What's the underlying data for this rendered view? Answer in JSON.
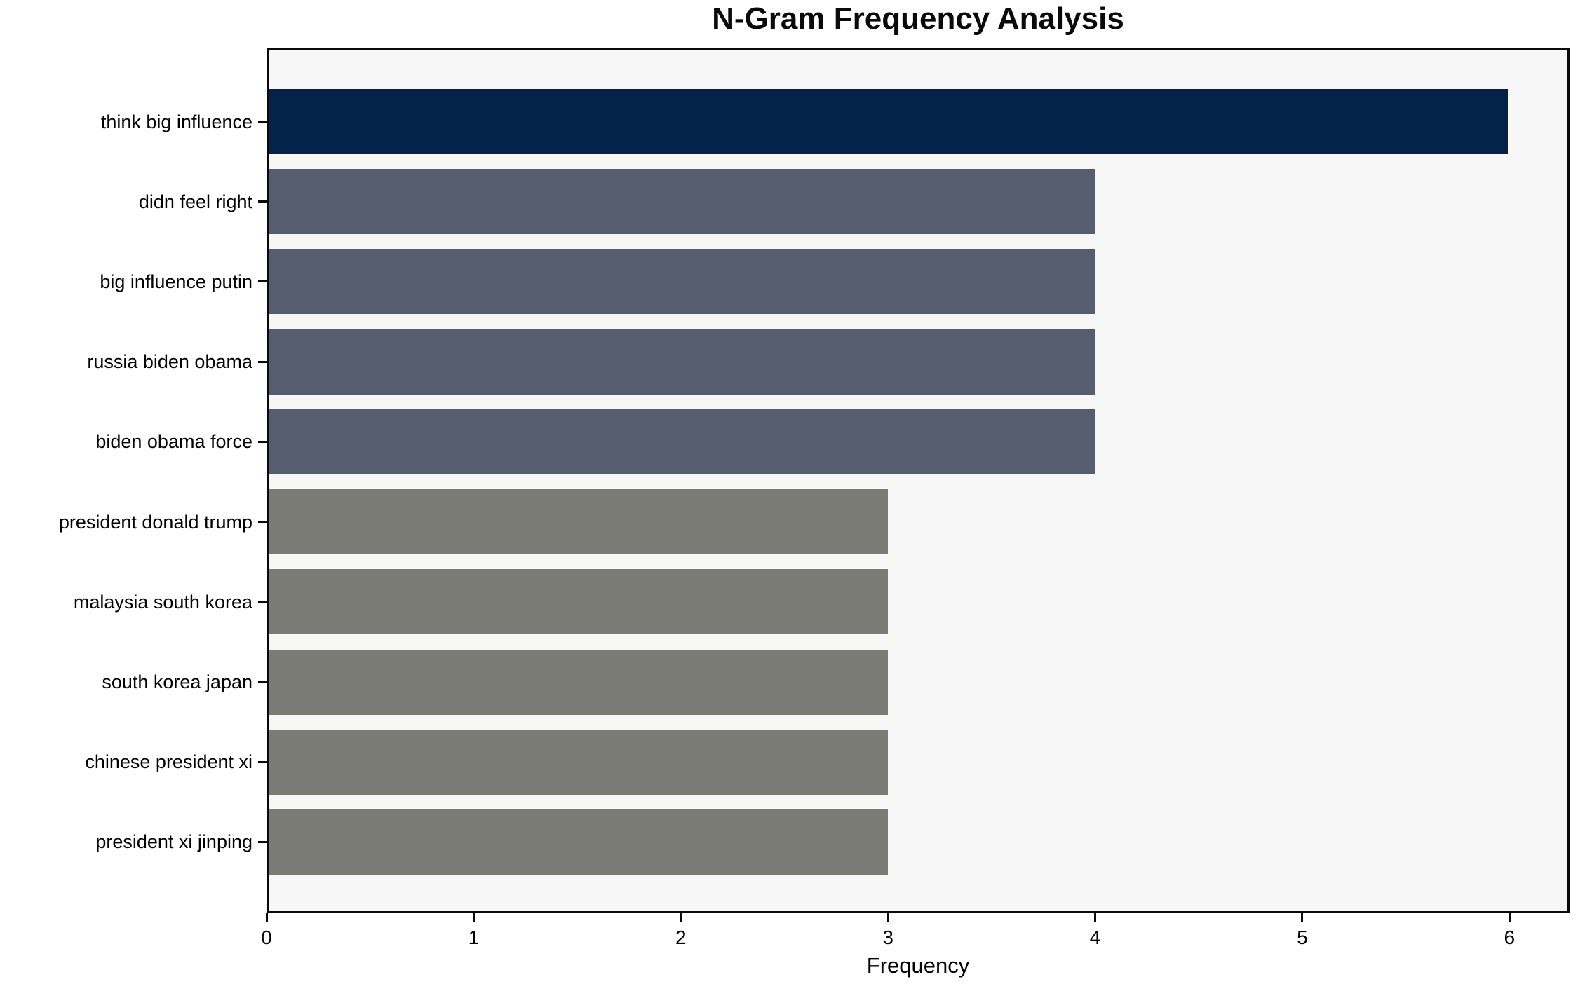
{
  "chart_data": {
    "type": "bar",
    "orientation": "horizontal",
    "title": "N-Gram Frequency Analysis",
    "xlabel": "Frequency",
    "ylabel": "",
    "categories": [
      "think big influence",
      "didn feel right",
      "big influence putin",
      "russia biden obama",
      "biden obama force",
      "president donald trump",
      "malaysia south korea",
      "south korea japan",
      "chinese president xi",
      "president xi jinping"
    ],
    "values": [
      6,
      4,
      4,
      4,
      4,
      3,
      3,
      3,
      3,
      3
    ],
    "bar_colors": [
      "#03234b",
      "#565d6e",
      "#565d6e",
      "#565d6e",
      "#565d6e",
      "#7b7b76",
      "#7b7b76",
      "#7b7b76",
      "#7b7b76",
      "#7b7b76"
    ],
    "xticks": [
      0,
      1,
      2,
      3,
      4,
      5,
      6
    ],
    "xlim": [
      0,
      6.29
    ],
    "grid": false,
    "legend_position": "none",
    "colors": {
      "plot_background": "#f7f7f8",
      "figure_background": "#ffffff",
      "axis": "#0a0a0a",
      "text": "#000000"
    }
  }
}
